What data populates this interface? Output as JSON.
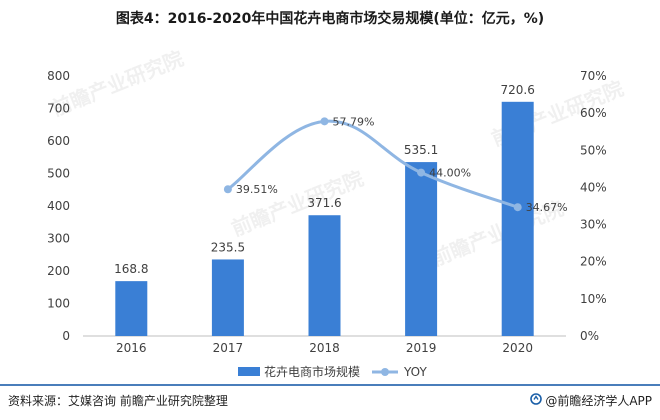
{
  "title": "图表4：2016-2020年中国花卉电商市场交易规模(单位：亿元，%)",
  "footer": {
    "source": "资料来源：艾媒咨询 前瞻产业研究院整理",
    "brand": "@前瞻经济学人APP",
    "brand_icon": "qianzhan-logo-icon"
  },
  "watermark": "前瞻产业研究院",
  "colors": {
    "bar": "#3a7fd5",
    "line": "#8fb6e3",
    "text": "#404040",
    "axis": "#bfbfbf",
    "footer_line": "#4a7ebb"
  },
  "chart_data": {
    "type": "bar",
    "categories": [
      "2016",
      "2017",
      "2018",
      "2019",
      "2020"
    ],
    "series": [
      {
        "name": "花卉电商市场规模",
        "type": "bar",
        "axis": "left",
        "values": [
          168.8,
          235.5,
          371.6,
          535.1,
          720.6
        ],
        "labels": [
          "168.8",
          "235.5",
          "371.6",
          "535.1",
          "720.6"
        ]
      },
      {
        "name": "YOY",
        "type": "line",
        "axis": "right",
        "smooth": true,
        "values": [
          null,
          39.51,
          57.79,
          44.0,
          34.67
        ],
        "labels": [
          "",
          "39.51%",
          "57.79%",
          "44.00%",
          "34.67%"
        ]
      }
    ],
    "y_left": {
      "min": 0,
      "max": 800,
      "ticks": [
        "0",
        "100",
        "200",
        "300",
        "400",
        "500",
        "600",
        "700",
        "800"
      ]
    },
    "y_right": {
      "min": 0,
      "max": 70,
      "ticks": [
        "0%",
        "10%",
        "20%",
        "30%",
        "40%",
        "50%",
        "60%",
        "70%"
      ]
    },
    "legend_position": "bottom-center",
    "grid": false
  }
}
